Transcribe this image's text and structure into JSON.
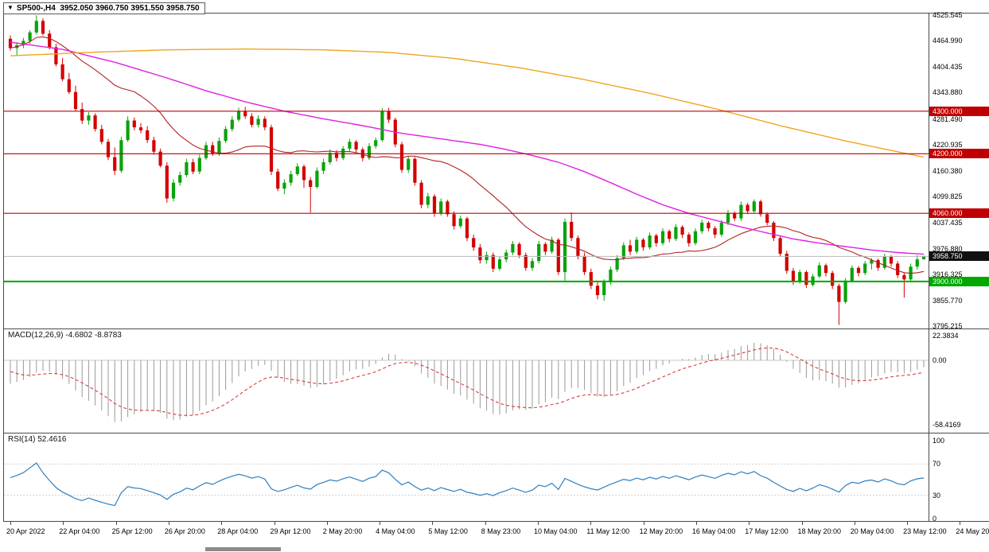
{
  "theme": {
    "bull": "#0AA30A",
    "bear": "#D40000",
    "ma_fast": "#B22222",
    "ma_mid": "#E020E0",
    "ma_slow": "#EFA51E",
    "macd_bar": "#9A9A9A",
    "macd_signal": "#DC3C3C",
    "rsi": "#2D7FC1",
    "bid_line": "#B9B9B9",
    "border": "#4a4a4a",
    "current_tag_bg": "#101010"
  },
  "icons": {
    "symbol_marker": "▼"
  },
  "title_box": {
    "symbol": "SP500-,H4",
    "ohlc": "3952.050 3960.750 3951.550 3958.750"
  },
  "chart_data": [
    {
      "type": "candlestick",
      "symbol": "SP500-",
      "timeframe": "H4",
      "price_max": 4525.545,
      "price_min": 3795.215,
      "y_axis_labels": [
        "4525.545",
        "4464.990",
        "4404.435",
        "4343.880",
        "4281.490",
        "4220.935",
        "4160.380",
        "4099.825",
        "4037.435",
        "3976.880",
        "3916.325",
        "3855.770",
        "3795.215"
      ],
      "hlines": [
        {
          "price": 4300,
          "label": "4300.000",
          "color": "#C00000",
          "width": 1.2
        },
        {
          "price": 4200,
          "label": "4200.000",
          "color": "#C00000",
          "width": 1.2
        },
        {
          "price": 4060,
          "label": "4060.000",
          "color": "#C00000",
          "width": 1.2
        },
        {
          "price": 3900,
          "label": "3900.000",
          "color": "#00A800",
          "width": 2
        }
      ],
      "current_price": {
        "value": 3958.75,
        "label": "3958.750"
      },
      "ma_fast": {
        "kind": "sma",
        "period": 20
      },
      "ma_medium_points": [
        [
          0,
          4462
        ],
        [
          8,
          4445
        ],
        [
          16,
          4415
        ],
        [
          24,
          4378
        ],
        [
          30,
          4348
        ],
        [
          36,
          4322
        ],
        [
          42,
          4300
        ],
        [
          48,
          4282
        ],
        [
          54,
          4266
        ],
        [
          60,
          4248
        ],
        [
          66,
          4235
        ],
        [
          72,
          4222
        ],
        [
          76,
          4210
        ],
        [
          80,
          4196
        ],
        [
          84,
          4180
        ],
        [
          88,
          4158
        ],
        [
          92,
          4132
        ],
        [
          96,
          4105
        ],
        [
          100,
          4080
        ],
        [
          104,
          4060
        ],
        [
          108,
          4044
        ],
        [
          112,
          4028
        ],
        [
          116,
          4014
        ],
        [
          120,
          4000
        ],
        [
          124,
          3990
        ],
        [
          128,
          3982
        ],
        [
          132,
          3974
        ],
        [
          136,
          3968
        ],
        [
          140,
          3964
        ]
      ],
      "ma_slow_points": [
        [
          0,
          4430
        ],
        [
          12,
          4438
        ],
        [
          24,
          4444
        ],
        [
          36,
          4446
        ],
        [
          48,
          4444
        ],
        [
          58,
          4438
        ],
        [
          68,
          4424
        ],
        [
          78,
          4402
        ],
        [
          88,
          4374
        ],
        [
          98,
          4342
        ],
        [
          108,
          4306
        ],
        [
          118,
          4266
        ],
        [
          128,
          4230
        ],
        [
          140,
          4192
        ]
      ],
      "candles": [
        [
          4470,
          4478,
          4442,
          4448
        ],
        [
          4448,
          4462,
          4430,
          4455
        ],
        [
          4455,
          4472,
          4448,
          4465
        ],
        [
          4465,
          4490,
          4458,
          4485
        ],
        [
          4485,
          4525,
          4480,
          4512
        ],
        [
          4512,
          4518,
          4478,
          4482
        ],
        [
          4482,
          4490,
          4445,
          4450
        ],
        [
          4450,
          4458,
          4405,
          4410
        ],
        [
          4410,
          4425,
          4370,
          4375
        ],
        [
          4375,
          4390,
          4340,
          4345
        ],
        [
          4345,
          4360,
          4300,
          4305
        ],
        [
          4305,
          4320,
          4270,
          4278
        ],
        [
          4278,
          4298,
          4268,
          4290
        ],
        [
          4290,
          4295,
          4252,
          4258
        ],
        [
          4258,
          4268,
          4222,
          4228
        ],
        [
          4228,
          4235,
          4185,
          4192
        ],
        [
          4192,
          4215,
          4150,
          4160
        ],
        [
          4160,
          4240,
          4155,
          4232
        ],
        [
          4232,
          4288,
          4228,
          4278
        ],
        [
          4278,
          4285,
          4255,
          4262
        ],
        [
          4262,
          4272,
          4248,
          4255
        ],
        [
          4255,
          4265,
          4225,
          4232
        ],
        [
          4232,
          4240,
          4198,
          4205
        ],
        [
          4205,
          4212,
          4168,
          4172
        ],
        [
          4172,
          4180,
          4085,
          4095
        ],
        [
          4095,
          4140,
          4088,
          4132
        ],
        [
          4132,
          4158,
          4125,
          4150
        ],
        [
          4150,
          4188,
          4145,
          4180
        ],
        [
          4180,
          4188,
          4152,
          4158
        ],
        [
          4158,
          4198,
          4152,
          4190
        ],
        [
          4190,
          4228,
          4185,
          4220
        ],
        [
          4220,
          4228,
          4195,
          4200
        ],
        [
          4200,
          4238,
          4195,
          4230
        ],
        [
          4230,
          4265,
          4225,
          4258
        ],
        [
          4258,
          4288,
          4252,
          4280
        ],
        [
          4280,
          4308,
          4275,
          4300
        ],
        [
          4300,
          4310,
          4282,
          4288
        ],
        [
          4288,
          4295,
          4262,
          4268
        ],
        [
          4268,
          4290,
          4262,
          4282
        ],
        [
          4282,
          4288,
          4255,
          4262
        ],
        [
          4262,
          4268,
          4150,
          4158
        ],
        [
          4158,
          4165,
          4112,
          4118
        ],
        [
          4118,
          4140,
          4105,
          4132
        ],
        [
          4132,
          4160,
          4125,
          4152
        ],
        [
          4152,
          4178,
          4148,
          4170
        ],
        [
          4170,
          4175,
          4120,
          4138
        ],
        [
          4138,
          4145,
          4062,
          4122
        ],
        [
          4122,
          4168,
          4118,
          4160
        ],
        [
          4160,
          4188,
          4152,
          4180
        ],
        [
          4180,
          4210,
          4175,
          4202
        ],
        [
          4202,
          4208,
          4182,
          4190
        ],
        [
          4190,
          4218,
          4185,
          4212
        ],
        [
          4212,
          4235,
          4205,
          4228
        ],
        [
          4228,
          4232,
          4202,
          4210
        ],
        [
          4210,
          4215,
          4182,
          4190
        ],
        [
          4190,
          4225,
          4185,
          4218
        ],
        [
          4218,
          4238,
          4212,
          4232
        ],
        [
          4232,
          4307,
          4228,
          4300
        ],
        [
          4300,
          4308,
          4272,
          4280
        ],
        [
          4280,
          4285,
          4215,
          4222
        ],
        [
          4222,
          4228,
          4155,
          4162
        ],
        [
          4162,
          4195,
          4155,
          4188
        ],
        [
          4188,
          4192,
          4125,
          4132
        ],
        [
          4132,
          4138,
          4072,
          4080
        ],
        [
          4080,
          4108,
          4072,
          4100
        ],
        [
          4100,
          4105,
          4052,
          4060
        ],
        [
          4060,
          4095,
          4055,
          4088
        ],
        [
          4088,
          4092,
          4052,
          4058
        ],
        [
          4058,
          4065,
          4022,
          4030
        ],
        [
          4030,
          4055,
          4025,
          4048
        ],
        [
          4048,
          4052,
          3995,
          4002
        ],
        [
          4002,
          4010,
          3972,
          3980
        ],
        [
          3980,
          3988,
          3942,
          3950
        ],
        [
          3950,
          3970,
          3942,
          3962
        ],
        [
          3962,
          3968,
          3922,
          3930
        ],
        [
          3930,
          3958,
          3925,
          3952
        ],
        [
          3952,
          3975,
          3945,
          3968
        ],
        [
          3968,
          3995,
          3962,
          3988
        ],
        [
          3988,
          3992,
          3955,
          3962
        ],
        [
          3962,
          3968,
          3925,
          3932
        ],
        [
          3932,
          3955,
          3925,
          3948
        ],
        [
          3948,
          3995,
          3942,
          3988
        ],
        [
          3988,
          3992,
          3962,
          3970
        ],
        [
          3970,
          4005,
          3965,
          3998
        ],
        [
          3998,
          4002,
          3915,
          3922
        ],
        [
          3922,
          4048,
          3902,
          4040
        ],
        [
          4040,
          4062,
          3995,
          4002
        ],
        [
          4002,
          4008,
          3952,
          3960
        ],
        [
          3960,
          3968,
          3915,
          3922
        ],
        [
          3922,
          3930,
          3882,
          3890
        ],
        [
          3890,
          3898,
          3858,
          3868
        ],
        [
          3868,
          3905,
          3855,
          3898
        ],
        [
          3898,
          3935,
          3892,
          3928
        ],
        [
          3928,
          3962,
          3922,
          3955
        ],
        [
          3955,
          3992,
          3950,
          3985
        ],
        [
          3985,
          3998,
          3962,
          3970
        ],
        [
          3970,
          4005,
          3965,
          3998
        ],
        [
          3998,
          4002,
          3972,
          3980
        ],
        [
          3980,
          4015,
          3975,
          4008
        ],
        [
          4008,
          4012,
          3982,
          3990
        ],
        [
          3990,
          4025,
          3985,
          4018
        ],
        [
          4018,
          4022,
          3992,
          4000
        ],
        [
          4000,
          4035,
          3995,
          4028
        ],
        [
          4028,
          4032,
          4002,
          4010
        ],
        [
          4010,
          4015,
          3982,
          3990
        ],
        [
          3990,
          4025,
          3985,
          4018
        ],
        [
          4018,
          4045,
          4012,
          4038
        ],
        [
          4038,
          4042,
          4018,
          4025
        ],
        [
          4025,
          4030,
          4002,
          4010
        ],
        [
          4010,
          4045,
          4005,
          4038
        ],
        [
          4038,
          4068,
          4032,
          4060
        ],
        [
          4060,
          4065,
          4042,
          4048
        ],
        [
          4048,
          4088,
          4042,
          4080
        ],
        [
          4080,
          4085,
          4058,
          4065
        ],
        [
          4065,
          4093,
          4060,
          4088
        ],
        [
          4088,
          4092,
          4052,
          4058
        ],
        [
          4058,
          4062,
          4032,
          4038
        ],
        [
          4038,
          4042,
          3995,
          4002
        ],
        [
          4002,
          4008,
          3958,
          3965
        ],
        [
          3965,
          3972,
          3918,
          3925
        ],
        [
          3925,
          3932,
          3892,
          3900
        ],
        [
          3900,
          3928,
          3895,
          3922
        ],
        [
          3922,
          3926,
          3885,
          3892
        ],
        [
          3892,
          3918,
          3888,
          3912
        ],
        [
          3912,
          3945,
          3908,
          3938
        ],
        [
          3938,
          3942,
          3912,
          3920
        ],
        [
          3920,
          3925,
          3882,
          3890
        ],
        [
          3890,
          3895,
          3798,
          3852
        ],
        [
          3852,
          3908,
          3848,
          3902
        ],
        [
          3902,
          3938,
          3898,
          3932
        ],
        [
          3932,
          3936,
          3912,
          3920
        ],
        [
          3920,
          3948,
          3915,
          3942
        ],
        [
          3942,
          3955,
          3928,
          3950
        ],
        [
          3950,
          3954,
          3925,
          3932
        ],
        [
          3932,
          3965,
          3928,
          3958
        ],
        [
          3958,
          3962,
          3935,
          3942
        ],
        [
          3942,
          3948,
          3908,
          3915
        ],
        [
          3915,
          3920,
          3862,
          3905
        ],
        [
          3905,
          3942,
          3900,
          3935
        ],
        [
          3935,
          3962,
          3928,
          3952
        ],
        [
          3952,
          3960.75,
          3951.55,
          3958.75
        ]
      ]
    },
    {
      "type": "macd",
      "label": "MACD(12,26,9)",
      "values": "-4.6802 -8.8783",
      "params": [
        12,
        26,
        9
      ],
      "range": [
        22.3834,
        -58.4169
      ],
      "axis": [
        {
          "v": 22.3834,
          "t": "22.3834"
        },
        {
          "v": 0,
          "t": "0.00"
        },
        {
          "v": -58.4169,
          "t": "-58.4169"
        }
      ]
    },
    {
      "type": "rsi",
      "label": "RSI(14)",
      "value": "52.4616",
      "period": 14,
      "levels": [
        70,
        30
      ],
      "axis": [
        {
          "v": 100,
          "t": "100"
        },
        {
          "v": 70,
          "t": "70"
        },
        {
          "v": 30,
          "t": "30"
        },
        {
          "v": 0,
          "t": "0"
        }
      ]
    }
  ],
  "time_axis": {
    "labels": [
      "20 Apr 2022",
      "22 Apr 04:00",
      "25 Apr 12:00",
      "26 Apr 20:00",
      "28 Apr 04:00",
      "29 Apr 12:00",
      "2 May 20:00",
      "4 May 04:00",
      "5 May 12:00",
      "8 May 23:00",
      "10 May 04:00",
      "11 May 12:00",
      "12 May 20:00",
      "16 May 04:00",
      "17 May 12:00",
      "18 May 20:00",
      "20 May 04:00",
      "23 May 12:00",
      "24 May 20:00"
    ]
  }
}
